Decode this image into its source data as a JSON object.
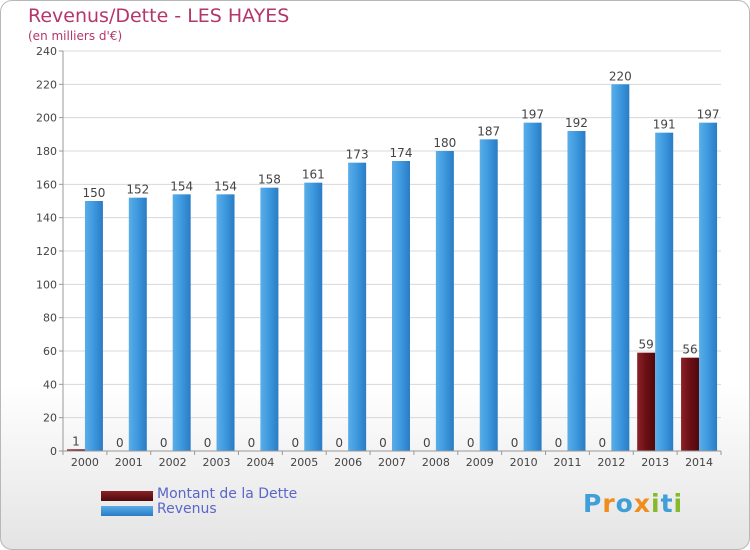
{
  "chart_data": {
    "type": "bar",
    "title": "Revenus/Dette - LES HAYES",
    "subtitle": "(en milliers d'€)",
    "categories": [
      "2000",
      "2001",
      "2002",
      "2003",
      "2004",
      "2005",
      "2006",
      "2007",
      "2008",
      "2009",
      "2010",
      "2011",
      "2012",
      "2013",
      "2014"
    ],
    "series": [
      {
        "name": "Montant de la Dette",
        "values": [
          1,
          0,
          0,
          0,
          0,
          0,
          0,
          0,
          0,
          0,
          0,
          0,
          0,
          59,
          56
        ],
        "color": "#6b0f14"
      },
      {
        "name": "Revenus",
        "values": [
          150,
          152,
          154,
          154,
          158,
          161,
          173,
          174,
          180,
          187,
          197,
          192,
          220,
          191,
          197
        ],
        "color": "#3d98de"
      }
    ],
    "ylim": [
      0,
      240
    ],
    "yticks": [
      0,
      20,
      40,
      60,
      80,
      100,
      120,
      140,
      160,
      180,
      200,
      220,
      240
    ],
    "grid": true,
    "legend_position": "bottom-left"
  },
  "legend": {
    "items": [
      {
        "label": "Montant de la Dette"
      },
      {
        "label": "Revenus"
      }
    ]
  },
  "logo": {
    "text": "Proxiti",
    "colors": [
      "#3f9fd8",
      "#f28c1c",
      "#3f9fd8",
      "#f28c1c",
      "#86b92b",
      "#3f9fd8",
      "#86b92b"
    ]
  }
}
